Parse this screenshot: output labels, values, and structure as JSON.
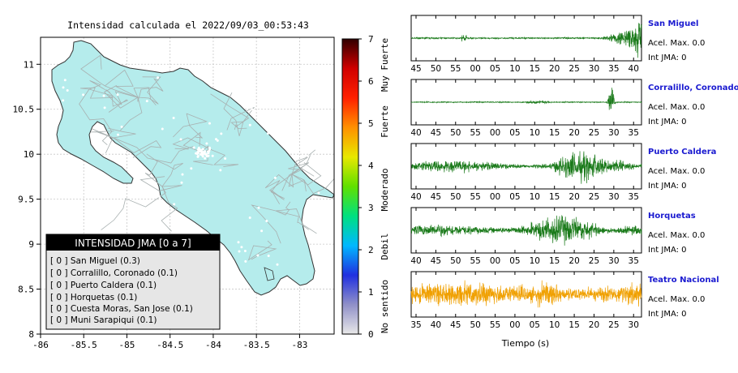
{
  "map": {
    "title": "Intensidad calculada el 2022/09/03_00:53:43",
    "x_ticks": [
      "-86",
      "-85.5",
      "-85",
      "-84.5",
      "-84",
      "-83.5",
      "-83"
    ],
    "y_ticks": [
      "11",
      "10.5",
      "10",
      "9.5",
      "9",
      "8.5",
      "8"
    ],
    "land_color": "#b5ecec",
    "legend": {
      "title": "INTENSIDAD JMA [0 a 7]",
      "items": [
        "[ 0 ]  San Miguel (0.3)",
        "[ 0 ]  Corralillo, Coronado (0.1)",
        "[ 0 ]  Puerto Caldera (0.1)",
        "[ 0 ]  Horquetas (0.1)",
        "[ 0 ]  Cuesta Moras, San Jose (0.1)",
        "[ 0 ]  Muni Sarapiqui (0.1)"
      ]
    }
  },
  "colorbar": {
    "ticks": [
      "7",
      "6",
      "5",
      "4",
      "3",
      "2",
      "1",
      "0"
    ],
    "labels": [
      "Muy Fuerte",
      "Fuerte",
      "Moderado",
      "Debil",
      "No sentido"
    ],
    "colors": [
      "#e8e8e8",
      "#9090c8",
      "#2030e0",
      "#00b8ff",
      "#00e080",
      "#60e000",
      "#e8e800",
      "#ff9000",
      "#ff2000",
      "#d00000",
      "#300000"
    ]
  },
  "traces": [
    {
      "station": "San Miguel",
      "acel": "Acel. Max. 0.0",
      "int": "Int JMA: 0",
      "color": "#1a7a1a",
      "x_ticks": [
        "45",
        "50",
        "55",
        "00",
        "05",
        "10",
        "15",
        "20",
        "25",
        "30",
        "35",
        "40"
      ]
    },
    {
      "station": "Corralillo, Coronado",
      "acel": "Acel. Max. 0.0",
      "int": "Int JMA: 0",
      "color": "#1a7a1a",
      "x_ticks": [
        "40",
        "45",
        "50",
        "55",
        "00",
        "05",
        "10",
        "15",
        "20",
        "25",
        "30",
        "35"
      ]
    },
    {
      "station": "Puerto Caldera",
      "acel": "Acel. Max. 0.0",
      "int": "Int JMA: 0",
      "color": "#1a7a1a",
      "x_ticks": [
        "40",
        "45",
        "50",
        "55",
        "00",
        "05",
        "10",
        "15",
        "20",
        "25",
        "30",
        "35"
      ]
    },
    {
      "station": "Horquetas",
      "acel": "Acel. Max. 0.0",
      "int": "Int JMA: 0",
      "color": "#1a7a1a",
      "x_ticks": [
        "40",
        "45",
        "50",
        "55",
        "00",
        "05",
        "10",
        "15",
        "20",
        "25",
        "30",
        "35"
      ]
    },
    {
      "station": "Teatro Nacional",
      "acel": "Acel. Max. 0.0",
      "int": "Int JMA: 0",
      "color": "#f0a000",
      "x_ticks": [
        "35",
        "40",
        "45",
        "50",
        "55",
        "00",
        "05",
        "10",
        "15",
        "20",
        "25",
        "30"
      ]
    }
  ],
  "time_label": "Tiempo (s)",
  "station_color": "#1a1ad0",
  "chart_data": {
    "type": "map",
    "title": "Intensidad calculada el 2022/09/03_00:53:43",
    "xlim": [
      -86,
      -82.6
    ],
    "ylim": [
      8,
      11.3
    ],
    "colorbar_range": [
      0,
      7
    ],
    "stations": [
      {
        "name": "San Miguel",
        "intensity": 0,
        "value": 0.3
      },
      {
        "name": "Corralillo, Coronado",
        "intensity": 0,
        "value": 0.1
      },
      {
        "name": "Puerto Caldera",
        "intensity": 0,
        "value": 0.1
      },
      {
        "name": "Horquetas",
        "intensity": 0,
        "value": 0.1
      },
      {
        "name": "Cuesta Moras, San Jose",
        "intensity": 0,
        "value": 0.1
      },
      {
        "name": "Muni Sarapiqui",
        "intensity": 0,
        "value": 0.1
      }
    ]
  }
}
